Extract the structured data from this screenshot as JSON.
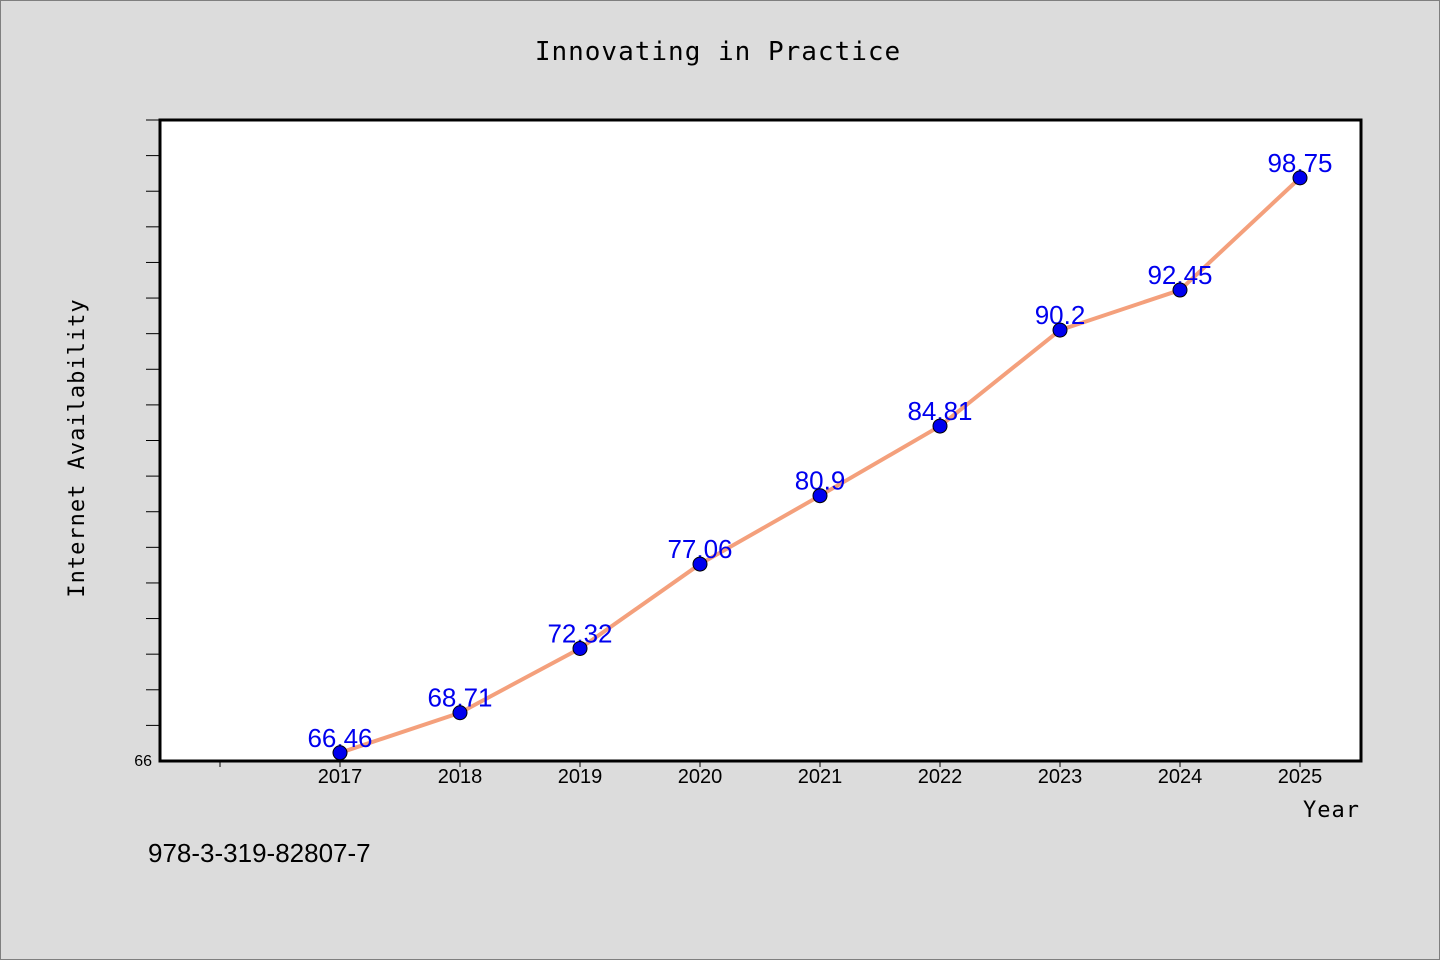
{
  "chart_data": {
    "type": "line",
    "title": "Innovating in Practice",
    "xlabel": "Year",
    "ylabel": "Internet Availability",
    "x": [
      "2017",
      "2018",
      "2019",
      "2020",
      "2021",
      "2022",
      "2023",
      "2024",
      "2025"
    ],
    "series": [
      {
        "values": [
          66.46,
          68.71,
          72.32,
          77.06,
          80.9,
          84.81,
          90.2,
          92.45,
          98.75
        ],
        "line_color": "#f4a07c",
        "marker_color": "#0000ee"
      }
    ],
    "ylim": [
      66,
      102
    ],
    "y_tick_label": "66",
    "grid": false,
    "legend": "none"
  },
  "footer": {
    "isbn": "978-3-319-82807-7"
  }
}
